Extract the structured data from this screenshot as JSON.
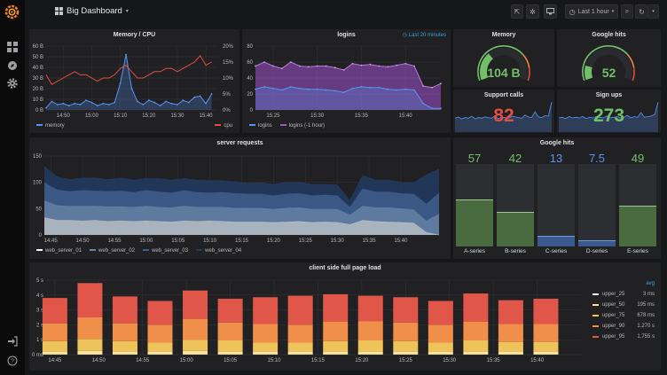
{
  "topbar": {
    "title": "Big Dashboard",
    "time_range": "Last 1 hour",
    "icons": [
      "grafana-logo-icon",
      "dashboard-grid-icon",
      "share-icon",
      "gear-icon",
      "monitor-icon",
      "clock-icon",
      "search-icon",
      "refresh-icon",
      "chevron-down-icon"
    ]
  },
  "sidebar": {
    "icons": [
      "dashboards-icon",
      "explore-compass-icon",
      "settings-gear-icon",
      "sign-in-icon",
      "help-icon"
    ]
  },
  "stats": {
    "memory_gauge": {
      "title": "Memory",
      "value": "104 B",
      "fill_fraction": 0.32,
      "color": "#73bf69"
    },
    "google_hits_gauge": {
      "title": "Google hits",
      "value": "52",
      "fill_fraction": 0.16,
      "color": "#73bf69"
    },
    "support_calls": {
      "title": "Support calls",
      "value": "82",
      "color": "#e24d42",
      "sparkline": [
        20,
        22,
        19,
        21,
        20,
        23,
        19,
        21,
        20,
        22,
        21,
        20,
        24,
        19,
        22,
        21,
        20,
        23,
        22,
        21,
        20,
        25,
        22,
        21,
        30,
        22,
        21,
        24,
        23,
        45
      ]
    },
    "sign_ups": {
      "title": "Sign ups",
      "value": "273",
      "color": "#73bf69",
      "sparkline": [
        20,
        21,
        19,
        22,
        20,
        21,
        20,
        22,
        19,
        21,
        20,
        22,
        21,
        20,
        23,
        20,
        21,
        22,
        20,
        21,
        24,
        20,
        22,
        21,
        28,
        21,
        22,
        23,
        25,
        44
      ]
    }
  },
  "chart_data": [
    {
      "type": "line",
      "title": "Memory / CPU",
      "xlim": [
        "14:44",
        "15:44"
      ],
      "x": [
        "14:44",
        "14:46",
        "14:48",
        "14:50",
        "14:52",
        "14:54",
        "14:56",
        "14:58",
        "15:00",
        "15:02",
        "15:04",
        "15:06",
        "15:08",
        "15:10",
        "15:12",
        "15:14",
        "15:16",
        "15:18",
        "15:20",
        "15:22",
        "15:24",
        "15:26",
        "15:28",
        "15:30",
        "15:32",
        "15:34",
        "15:36",
        "15:38",
        "15:40",
        "15:42"
      ],
      "x_ticks": [
        "14:50",
        "15:00",
        "15:10",
        "15:20",
        "15:30",
        "15:40"
      ],
      "ylim": [
        0,
        60
      ],
      "y_ticks": [
        "0 B",
        "10 B",
        "20 B",
        "30 B",
        "40 B",
        "50 B",
        "60 B"
      ],
      "ylim_right": [
        0,
        20
      ],
      "y_ticks_right": [
        "0%",
        "5%",
        "10%",
        "15%",
        "20%"
      ],
      "grid": true,
      "legend": "bottom",
      "series": [
        {
          "name": "memory",
          "axis": "left",
          "color": "#5794f2",
          "values": [
            2,
            8,
            5,
            6,
            4,
            6,
            5,
            9,
            7,
            4,
            6,
            5,
            7,
            25,
            52,
            20,
            8,
            5,
            9,
            7,
            4,
            8,
            6,
            5,
            9,
            7,
            12,
            13,
            6,
            15
          ]
        },
        {
          "name": "cpu",
          "axis": "right",
          "color": "#e24d42",
          "values": [
            11,
            8,
            9,
            10,
            11,
            12,
            11,
            11,
            10,
            9,
            10,
            10,
            11,
            13,
            14,
            12,
            10,
            10,
            11,
            12,
            12,
            13,
            13,
            12,
            13,
            14,
            15,
            17,
            14,
            15
          ]
        }
      ]
    },
    {
      "type": "area",
      "title": "logins",
      "note": "Last 20 minutes",
      "xlim": [
        "15:23",
        "15:44"
      ],
      "x": [
        "15:23",
        "15:24",
        "15:25",
        "15:26",
        "15:27",
        "15:28",
        "15:29",
        "15:30",
        "15:31",
        "15:32",
        "15:33",
        "15:34",
        "15:35",
        "15:36",
        "15:37",
        "15:38",
        "15:39",
        "15:40",
        "15:41",
        "15:42",
        "15:43",
        "15:44"
      ],
      "x_ticks": [
        "15:25",
        "15:30",
        "15:35",
        "15:40"
      ],
      "ylim": [
        0,
        80
      ],
      "y_ticks": [
        "0",
        "20",
        "40",
        "60",
        "80"
      ],
      "grid": true,
      "legend": "bottom",
      "series": [
        {
          "name": "logins",
          "color": "#5794f2",
          "values": [
            26,
            29,
            27,
            25,
            29,
            27,
            26,
            26,
            25,
            24,
            22,
            27,
            29,
            28,
            28,
            26,
            25,
            26,
            25,
            8,
            2,
            2
          ]
        },
        {
          "name": "logins (-1 hour)",
          "color": "#a352cc",
          "values": [
            55,
            60,
            55,
            52,
            60,
            55,
            54,
            55,
            55,
            53,
            50,
            58,
            56,
            57,
            55,
            54,
            56,
            58,
            55,
            30,
            28,
            33
          ]
        }
      ]
    },
    {
      "type": "area",
      "stacked": true,
      "title": "server requests",
      "xlim": [
        "14:44",
        "15:46"
      ],
      "x": [
        "14:44",
        "14:46",
        "14:48",
        "14:50",
        "14:52",
        "14:54",
        "14:56",
        "14:58",
        "15:00",
        "15:02",
        "15:04",
        "15:06",
        "15:08",
        "15:10",
        "15:12",
        "15:14",
        "15:16",
        "15:18",
        "15:20",
        "15:22",
        "15:24",
        "15:26",
        "15:28",
        "15:30",
        "15:32",
        "15:34",
        "15:36",
        "15:38",
        "15:40",
        "15:42",
        "15:44",
        "15:46"
      ],
      "x_ticks": [
        "14:45",
        "14:50",
        "14:55",
        "15:00",
        "15:05",
        "15:10",
        "15:15",
        "15:20",
        "15:25",
        "15:30",
        "15:35",
        "15:40"
      ],
      "ylim": [
        0,
        150
      ],
      "y_ticks": [
        "0",
        "50",
        "100",
        "150"
      ],
      "grid": true,
      "legend": "bottom",
      "series": [
        {
          "name": "web_server_01",
          "color": "#b7c3cf",
          "values": [
            33,
            28,
            28,
            27,
            28,
            26,
            27,
            26,
            27,
            26,
            25,
            27,
            26,
            27,
            26,
            25,
            25,
            25,
            24,
            25,
            26,
            24,
            25,
            24,
            20,
            28,
            26,
            25,
            24,
            23,
            5,
            0
          ]
        },
        {
          "name": "web_server_02",
          "color": "#6584ad",
          "values": [
            32,
            28,
            27,
            28,
            27,
            28,
            27,
            27,
            28,
            27,
            27,
            28,
            27,
            26,
            27,
            26,
            26,
            26,
            25,
            26,
            26,
            25,
            24,
            25,
            18,
            27,
            26,
            27,
            26,
            25,
            22,
            40
          ]
        },
        {
          "name": "web_server_03",
          "color": "#3d5e8e",
          "values": [
            35,
            30,
            28,
            30,
            29,
            29,
            30,
            28,
            30,
            29,
            28,
            30,
            28,
            27,
            28,
            28,
            27,
            27,
            26,
            27,
            27,
            26,
            27,
            26,
            15,
            33,
            30,
            30,
            29,
            30,
            32,
            40
          ]
        },
        {
          "name": "web_server_04",
          "color": "#223a5e",
          "values": [
            30,
            24,
            22,
            23,
            24,
            22,
            24,
            23,
            22,
            25,
            24,
            22,
            23,
            23,
            22,
            22,
            20,
            21,
            21,
            22,
            21,
            21,
            20,
            20,
            12,
            25,
            22,
            22,
            21,
            21,
            55,
            45
          ]
        }
      ]
    },
    {
      "type": "bar",
      "title": "Google hits",
      "categories": [
        "A-series",
        "B-series",
        "C-series",
        "D-series",
        "E-series"
      ],
      "values": [
        57,
        42,
        13,
        7.5,
        49
      ],
      "value_labels": [
        "57",
        "42",
        "13",
        "7.5",
        "49"
      ],
      "ylim": [
        0,
        100
      ],
      "colors": [
        "#73bf69",
        "#73bf69",
        "#5794f2",
        "#5794f2",
        "#73bf69"
      ]
    },
    {
      "type": "bar",
      "stacked": true,
      "title": "client side full page load",
      "xlim": [
        "14:44",
        "15:45"
      ],
      "x": [
        "14:45",
        "14:49",
        "14:53",
        "14:57",
        "15:01",
        "15:05",
        "15:09",
        "15:13",
        "15:17",
        "15:21",
        "15:25",
        "15:29",
        "15:33",
        "15:37",
        "15:41"
      ],
      "x_ticks": [
        "14:45",
        "14:50",
        "14:55",
        "15:00",
        "15:05",
        "15:10",
        "15:15",
        "15:20",
        "15:25",
        "15:30",
        "15:35",
        "15:40"
      ],
      "ylim": [
        0,
        5
      ],
      "y_ticks": [
        "0 ms",
        "1 s",
        "2 s",
        "3 s",
        "4 s",
        "5 s"
      ],
      "grid": true,
      "legend": "right",
      "legend_header": "avg",
      "series": [
        {
          "name": "upper_25",
          "avg": "3 ms",
          "color": "#f4f4f4",
          "values": [
            0.003,
            0.003,
            0.003,
            0.003,
            0.003,
            0.003,
            0.003,
            0.003,
            0.003,
            0.003,
            0.003,
            0.003,
            0.003,
            0.003,
            0.003
          ]
        },
        {
          "name": "upper_50",
          "avg": "195 ms",
          "color": "#f9e2a0",
          "values": [
            0.2,
            0.25,
            0.2,
            0.2,
            0.25,
            0.2,
            0.2,
            0.2,
            0.2,
            0.2,
            0.2,
            0.2,
            0.2,
            0.2,
            0.2
          ]
        },
        {
          "name": "upper_75",
          "avg": "678 ms",
          "color": "#eec35a",
          "values": [
            0.7,
            0.8,
            0.7,
            0.6,
            0.75,
            0.75,
            0.6,
            0.6,
            0.7,
            0.75,
            0.7,
            0.6,
            0.75,
            0.65,
            0.65
          ]
        },
        {
          "name": "upper_90",
          "avg": "1.270 s",
          "color": "#ef8f4a",
          "values": [
            1.2,
            1.45,
            1.2,
            1.2,
            1.4,
            1.2,
            1.25,
            1.2,
            1.3,
            1.3,
            1.25,
            1.2,
            1.25,
            1.2,
            1.2
          ]
        },
        {
          "name": "upper_95",
          "avg": "1.755 s",
          "color": "#e0574a",
          "values": [
            1.7,
            2.3,
            1.8,
            1.6,
            1.9,
            1.6,
            1.8,
            1.95,
            1.85,
            1.7,
            1.7,
            1.6,
            1.9,
            1.6,
            1.7
          ]
        }
      ]
    }
  ]
}
